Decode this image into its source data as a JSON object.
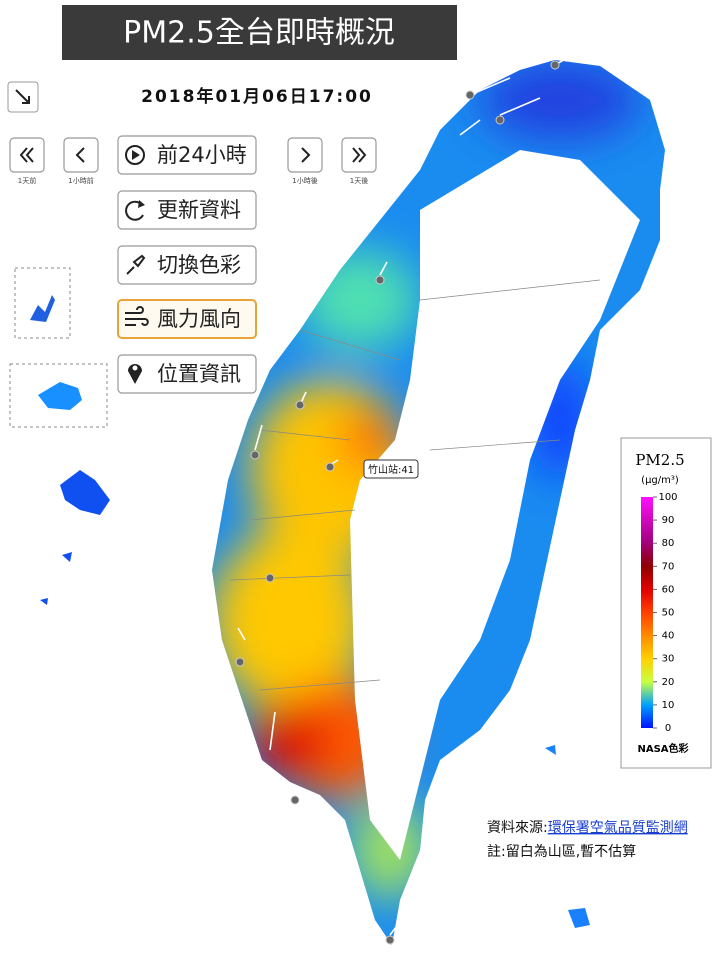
{
  "header": {
    "title": "PM2.5全台即時概況",
    "timestamp": "2018年01月06日17:00"
  },
  "nav": [
    "1天前",
    "1小時前",
    "1小時後",
    "1天後"
  ],
  "buttons": [
    "前24小時",
    "更新資料",
    "切換色彩",
    "風力風向",
    "位置資訊"
  ],
  "station_label": "竹山站:41",
  "legend": {
    "title": "PM2.5",
    "unit": "(μg/m³)",
    "ticks": [
      0,
      10,
      20,
      30,
      40,
      50,
      60,
      70,
      80,
      90,
      100
    ],
    "footer": "NASA色彩"
  },
  "footer": {
    "source_label": "資料來源:",
    "source_link": "環保署空氣品質監測網",
    "note": "註:留白為山區,暫不估算"
  }
}
